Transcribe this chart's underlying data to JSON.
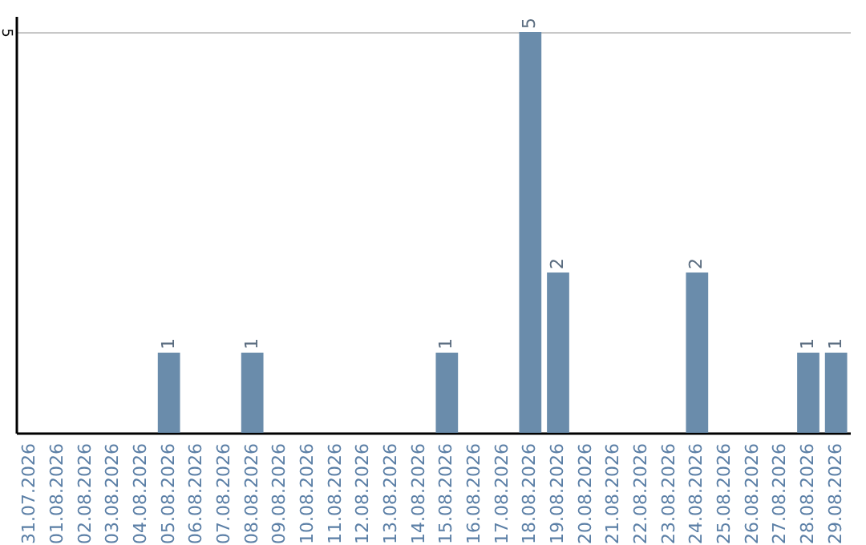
{
  "chart_data": {
    "type": "bar",
    "categories": [
      "31.07.2026",
      "01.08.2026",
      "02.08.2026",
      "03.08.2026",
      "04.08.2026",
      "05.08.2026",
      "06.08.2026",
      "07.08.2026",
      "08.08.2026",
      "09.08.2026",
      "10.08.2026",
      "11.08.2026",
      "12.08.2026",
      "13.08.2026",
      "14.08.2026",
      "15.08.2026",
      "16.08.2026",
      "17.08.2026",
      "18.08.2026",
      "19.08.2026",
      "20.08.2026",
      "21.08.2026",
      "22.08.2026",
      "23.08.2026",
      "24.08.2026",
      "25.08.2026",
      "26.08.2026",
      "27.08.2026",
      "28.08.2026",
      "29.08.2026"
    ],
    "values": [
      0,
      0,
      0,
      0,
      0,
      1,
      0,
      0,
      1,
      0,
      0,
      0,
      0,
      0,
      0,
      1,
      0,
      0,
      5,
      2,
      0,
      0,
      0,
      0,
      2,
      0,
      0,
      0,
      1,
      1
    ],
    "value_labels": [
      null,
      null,
      null,
      null,
      null,
      "1",
      null,
      null,
      "1",
      null,
      null,
      null,
      null,
      null,
      null,
      "1",
      null,
      null,
      "5",
      "2",
      null,
      null,
      null,
      null,
      "2",
      null,
      null,
      null,
      "1",
      "1"
    ],
    "color": "#6a8cab",
    "ylim": [
      0,
      5.2
    ],
    "yticks": [
      5
    ],
    "grid": "y"
  }
}
